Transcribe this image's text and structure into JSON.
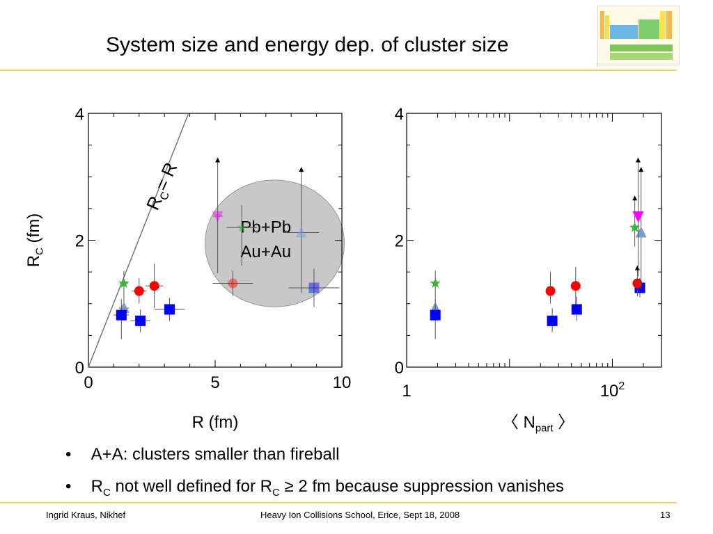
{
  "slide": {
    "title": "System size and energy dep. of cluster size",
    "bullets": [
      {
        "text": "A+A: clusters smaller than fireball"
      },
      {
        "parts": [
          "R",
          "C",
          " not well defined for R",
          "C",
          " ≥ 2 fm because suppression vanishes"
        ]
      }
    ],
    "footer": {
      "author": "Ingrid Kraus, Nikhef",
      "event": "Heavy Ion Collisions School, Erice, Sept 18, 2008",
      "page": "13"
    },
    "colors": {
      "accent_rule": "#f2d35a",
      "circle": "#c8c8c8",
      "red": "#ff0000",
      "blue": "#0000ff",
      "green": "#33bb33",
      "magenta": "#ff00ff",
      "steel": "#7a99cc"
    }
  },
  "chart_data": [
    {
      "type": "scatter",
      "xlabel": "R (fm)",
      "ylabel": [
        "R",
        "C",
        " (fm)"
      ],
      "xlim": [
        0,
        10
      ],
      "ylim": [
        0,
        4
      ],
      "xticks": [
        "0",
        "5",
        "10"
      ],
      "yticks": [
        "0",
        "2",
        "4"
      ],
      "line_label": [
        "R",
        "C",
        "= R"
      ],
      "blob_labels": [
        "Pb+Pb",
        "Au+Au"
      ],
      "line": {
        "x": [
          0,
          3.95
        ],
        "y": [
          0,
          4
        ]
      },
      "blob": {
        "cx": 7.35,
        "cy": 1.95,
        "rx": 2.75,
        "ry": 1.0
      },
      "points": [
        {
          "series": "green-star",
          "x": 1.4,
          "y": 1.32,
          "yerr": [
            0.2,
            0.2
          ],
          "xerr": [
            0.15,
            0.15
          ]
        },
        {
          "series": "steel-triangle",
          "x": 1.4,
          "y": 0.93,
          "yerr": [
            0.2,
            0.2
          ],
          "xerr": [
            0.2,
            0.2
          ]
        },
        {
          "series": "blue-square",
          "x": 1.3,
          "y": 0.82,
          "yerr": [
            0.38,
            0.25
          ],
          "xerr": [
            0.3,
            0.3
          ]
        },
        {
          "series": "red-circle",
          "x": 2.0,
          "y": 1.2,
          "yerr": [
            0.2,
            0.2
          ],
          "xerr": [
            0.3,
            0.3
          ]
        },
        {
          "series": "red-circle",
          "x": 2.6,
          "y": 1.28,
          "yerr": [
            0.35,
            0.35
          ],
          "xerr": [
            0.35,
            0.35
          ]
        },
        {
          "series": "blue-square",
          "x": 2.05,
          "y": 0.73,
          "yerr": [
            0.18,
            0.18
          ],
          "xerr": [
            0.4,
            0.4
          ]
        },
        {
          "series": "blue-square",
          "x": 3.2,
          "y": 0.91,
          "yerr": [
            0.18,
            0.18
          ],
          "xerr": [
            0.6,
            0.6
          ]
        },
        {
          "series": "magenta-triangle-down",
          "x": 5.1,
          "y": 2.38,
          "yerr": [
            0.9,
            0.8
          ],
          "xerr": [
            0.2,
            0.2
          ],
          "lower_limit": true,
          "limit_to": 3.25,
          "faded": true
        },
        {
          "series": "green-star",
          "x": 6.05,
          "y": 2.2,
          "yerr": [
            0.6,
            0.35
          ],
          "xerr": [
            0.6,
            0.6
          ],
          "faded": true
        },
        {
          "series": "red-circle",
          "x": 5.7,
          "y": 1.32,
          "yerr": [
            0.2,
            0.2
          ],
          "xerr": [
            0.8,
            0.8
          ],
          "faded": true
        },
        {
          "series": "steel-triangle",
          "x": 8.4,
          "y": 2.12,
          "yerr": [
            0.95,
            0.8
          ],
          "xerr": [
            0.7,
            0.7
          ],
          "lower_limit": true,
          "limit_to": 3.1,
          "faded": true
        },
        {
          "series": "blue-square",
          "x": 8.9,
          "y": 1.25,
          "yerr": [
            0.3,
            0.3
          ],
          "xerr": [
            1.0,
            1.0
          ],
          "faded": true
        }
      ]
    },
    {
      "type": "scatter",
      "xlabel": [
        "〈 N",
        "part",
        " 〉"
      ],
      "xscale": "log",
      "xlim": [
        1,
        300
      ],
      "ylim": [
        0,
        4
      ],
      "xticks": [
        {
          "base": "1",
          "exp": ""
        },
        {
          "base": "10",
          "exp": "2"
        }
      ],
      "yticks": [
        "0",
        "2",
        "4"
      ],
      "points": [
        {
          "series": "green-star",
          "x": 1.9,
          "y": 1.32,
          "yerr": [
            0.2,
            0.2
          ]
        },
        {
          "series": "steel-triangle",
          "x": 1.9,
          "y": 0.93,
          "yerr": [
            0.2,
            0.2
          ]
        },
        {
          "series": "blue-square",
          "x": 1.9,
          "y": 0.82,
          "yerr": [
            0.38,
            0.25
          ]
        },
        {
          "series": "red-circle",
          "x": 25,
          "y": 1.2,
          "yerr": [
            0.2,
            0.3
          ]
        },
        {
          "series": "blue-square",
          "x": 26,
          "y": 0.73,
          "yerr": [
            0.18,
            0.2
          ]
        },
        {
          "series": "red-circle",
          "x": 44,
          "y": 1.28,
          "yerr": [
            0.3,
            0.3
          ]
        },
        {
          "series": "blue-square",
          "x": 45,
          "y": 0.91,
          "yerr": [
            0.18,
            0.2
          ]
        },
        {
          "series": "blue-square",
          "x": 185,
          "y": 1.25,
          "yerr": [
            0.15,
            0.15
          ]
        },
        {
          "series": "red-circle",
          "x": 175,
          "y": 1.32,
          "yerr": [
            0.2,
            0.2
          ],
          "lower_limit": true,
          "limit_to": 1.55
        },
        {
          "series": "green-star",
          "x": 165,
          "y": 2.2,
          "yerr": [
            0.3,
            0.3
          ],
          "lower_limit": true,
          "limit_to": 2.65
        },
        {
          "series": "steel-triangle",
          "x": 190,
          "y": 2.12,
          "yerr": [
            0.9,
            0.75
          ],
          "lower_limit": true,
          "limit_to": 3.1
        },
        {
          "series": "magenta-triangle-down",
          "x": 178,
          "y": 2.38,
          "yerr": [
            0.95,
            0.8
          ],
          "lower_limit": true,
          "limit_to": 3.25
        }
      ]
    }
  ]
}
